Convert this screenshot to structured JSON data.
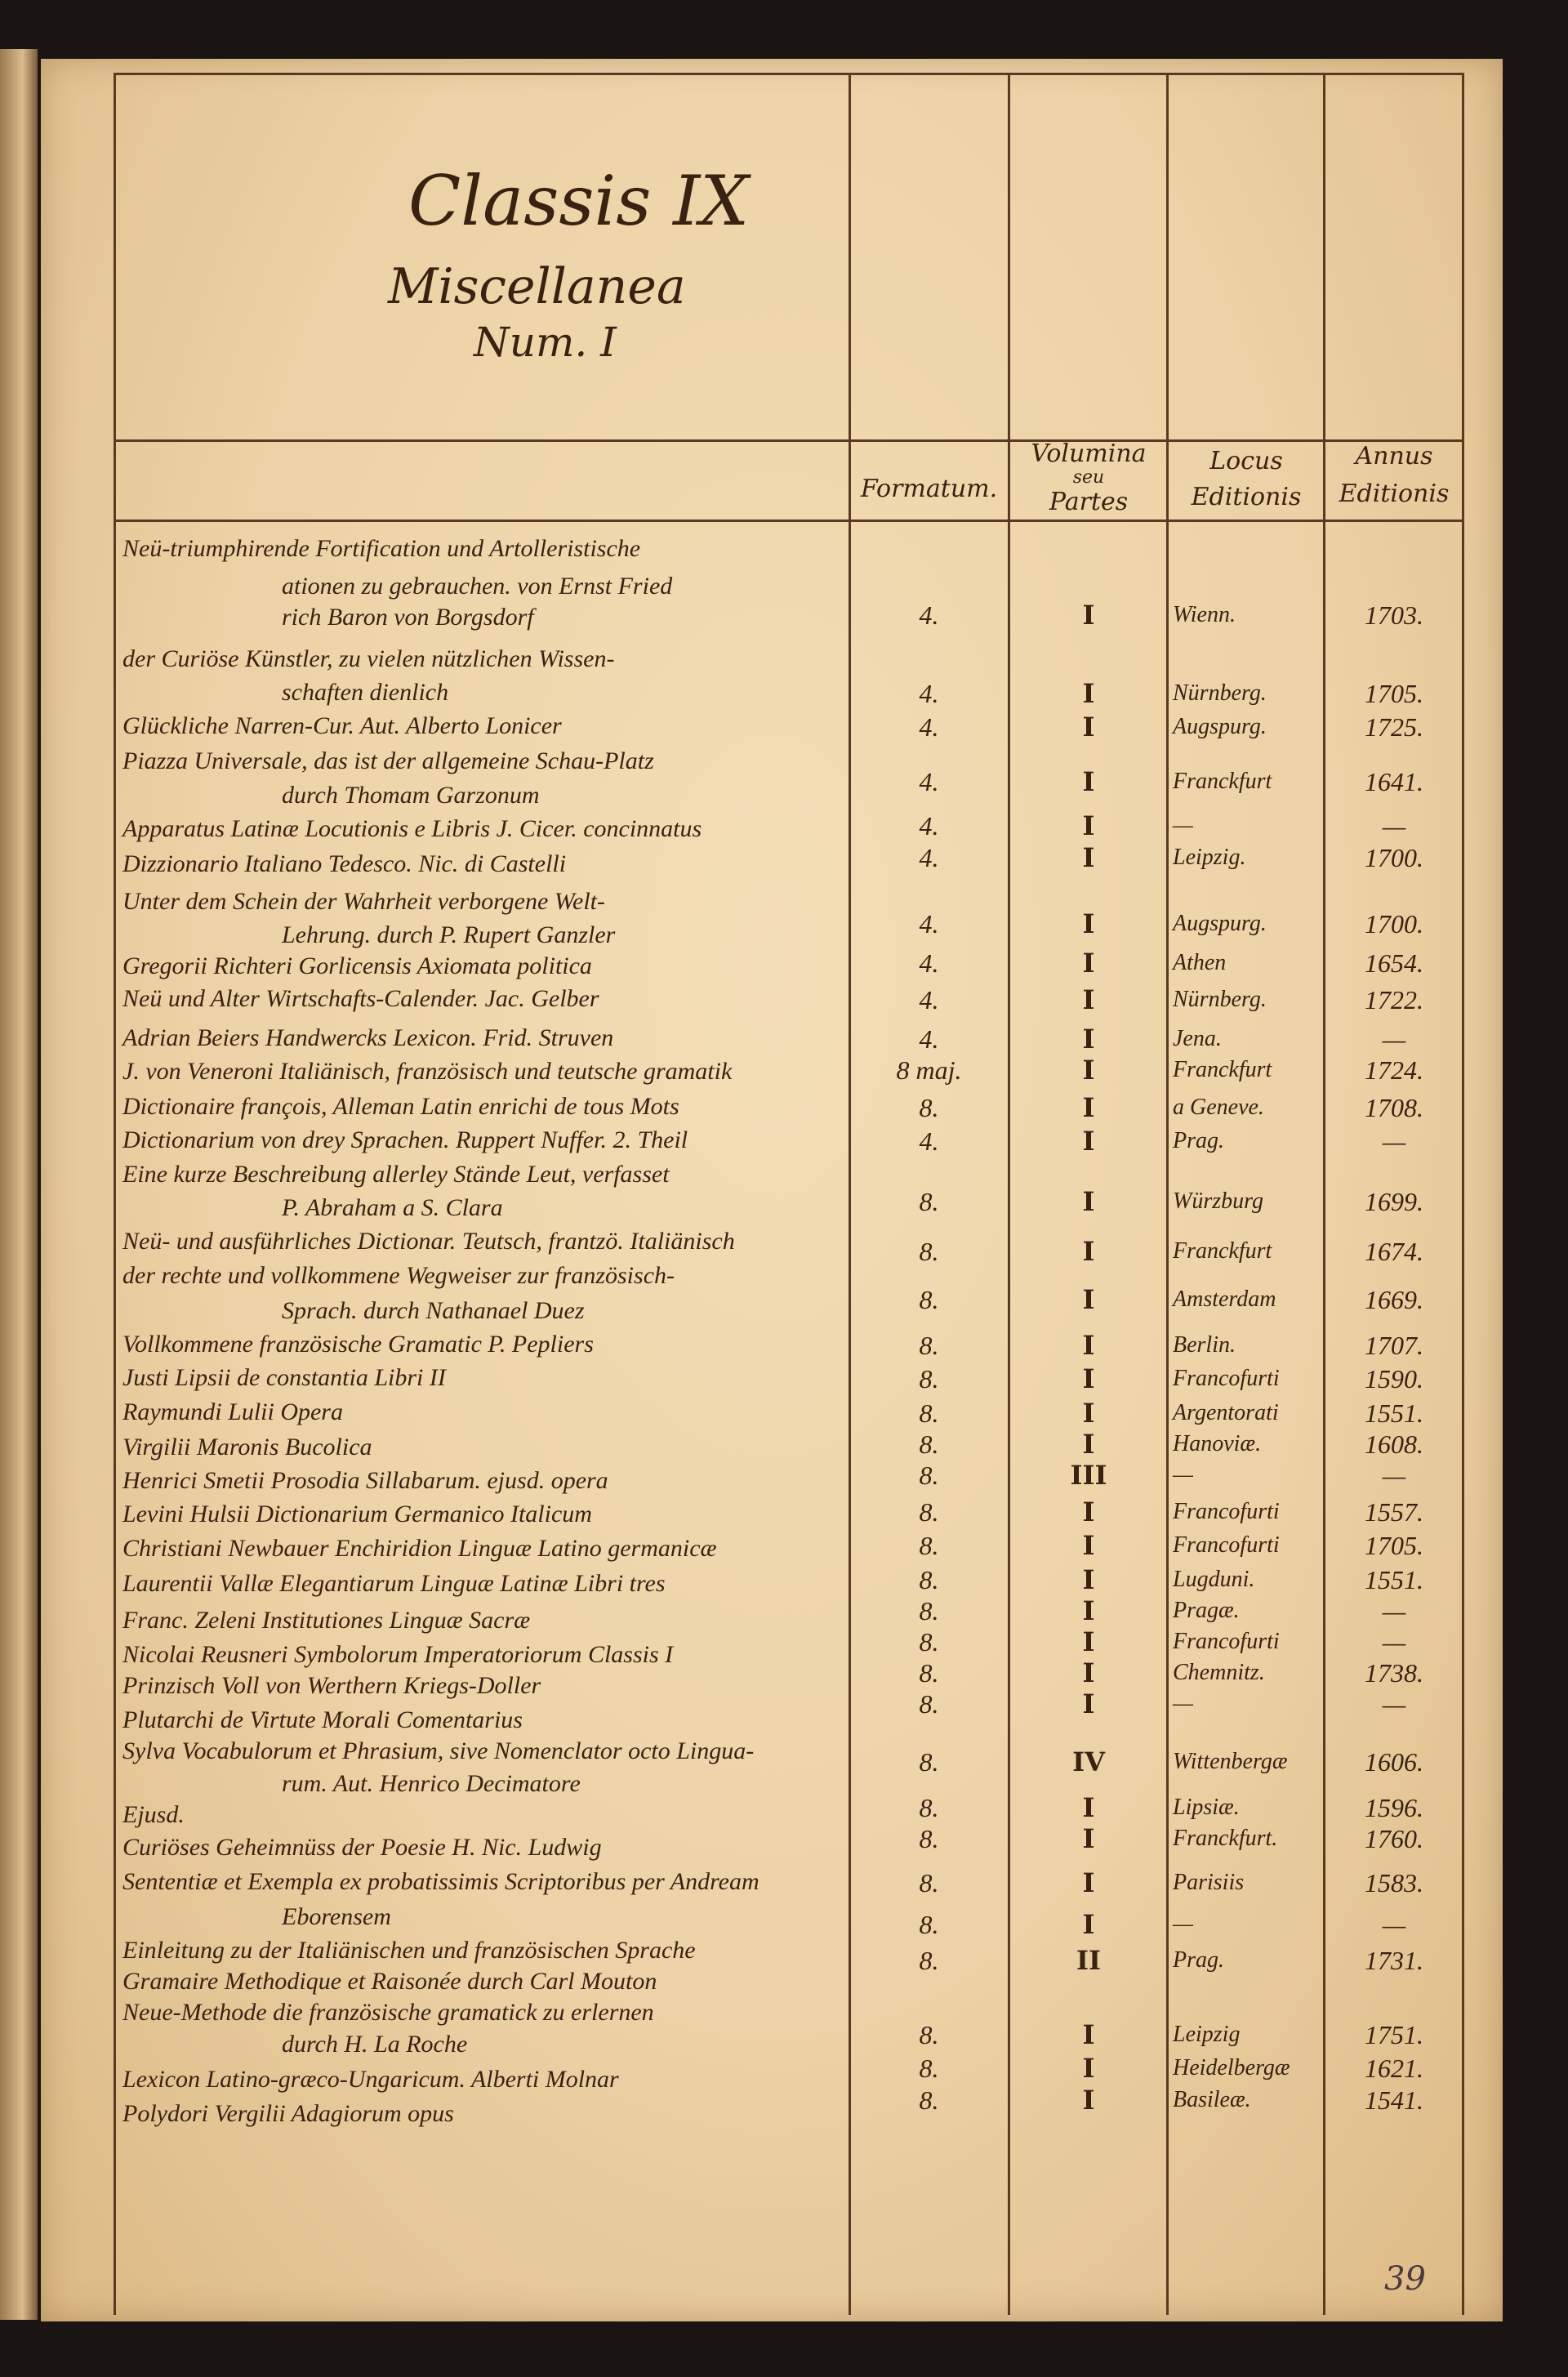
{
  "heading": {
    "classis": "Classis IX",
    "subject": "Miscellanea",
    "number": "Num. I"
  },
  "columns": {
    "formatum": "Formatum.",
    "volumina": [
      "Volumina",
      "seu",
      "Partes"
    ],
    "locus": [
      "Locus",
      "Editionis"
    ],
    "annus": [
      "Annus",
      "Editionis"
    ]
  },
  "entries": [
    {
      "lines": [
        "Neü-triumphirende Fortification und Artolleristische",
        "ationen zu gebrauchen. von Ernst Fried",
        "rich Baron von Borgsdorf"
      ],
      "formatum": "4.",
      "volumina": "I",
      "locus": "Wienn.",
      "annus": "1703."
    },
    {
      "lines": [
        "der Curiöse Künstler, zu vielen nützlichen Wissen-",
        "schaften dienlich"
      ],
      "formatum": "4.",
      "volumina": "I",
      "locus": "Nürnberg.",
      "annus": "1705."
    },
    {
      "lines": [
        "Glückliche Narren-Cur. Aut. Alberto Lonicer"
      ],
      "formatum": "4.",
      "volumina": "I",
      "locus": "Augspurg.",
      "annus": "1725."
    },
    {
      "lines": [
        "Piazza Universale, das ist der allgemeine Schau-Platz",
        "durch Thomam Garzonum"
      ],
      "formatum": "4.",
      "volumina": "I",
      "locus": "Franckfurt",
      "annus": "1641."
    },
    {
      "lines": [
        "Apparatus Latinæ Locutionis e Libris J. Cicer. concinnatus"
      ],
      "formatum": "4.",
      "volumina": "I",
      "locus": "—",
      "annus": "—"
    },
    {
      "lines": [
        "Dizzionario Italiano Tedesco. Nic. di Castelli"
      ],
      "formatum": "4.",
      "volumina": "I",
      "locus": "Leipzig.",
      "annus": "1700."
    },
    {
      "lines": [
        "Unter dem Schein der Wahrheit verborgene Welt-",
        "Lehrung. durch P. Rupert Ganzler"
      ],
      "formatum": "4.",
      "volumina": "I",
      "locus": "Augspurg.",
      "annus": "1700."
    },
    {
      "lines": [
        "Gregorii Richteri Gorlicensis Axiomata politica"
      ],
      "formatum": "4.",
      "volumina": "I",
      "locus": "Athen",
      "annus": "1654."
    },
    {
      "lines": [
        "Neü und Alter Wirtschafts-Calender. Jac. Gelber"
      ],
      "formatum": "4.",
      "volumina": "I",
      "locus": "Nürnberg.",
      "annus": "1722."
    },
    {
      "lines": [
        "Adrian Beiers Handwercks Lexicon. Frid. Struven"
      ],
      "formatum": "4.",
      "volumina": "I",
      "locus": "Jena.",
      "annus": "—"
    },
    {
      "lines": [
        "J. von Veneroni Italiänisch, französisch und teutsche gramatik"
      ],
      "formatum": "8 maj.",
      "volumina": "I",
      "locus": "Franckfurt",
      "annus": "1724."
    },
    {
      "lines": [
        "Dictionaire françois, Alleman Latin enrichi de tous Mots"
      ],
      "formatum": "8.",
      "volumina": "I",
      "locus": "a Geneve.",
      "annus": "1708."
    },
    {
      "lines": [
        "Dictionarium von drey Sprachen. Ruppert Nuffer. 2. Theil"
      ],
      "formatum": "4.",
      "volumina": "I",
      "locus": "Prag.",
      "annus": "—"
    },
    {
      "lines": [
        "Eine kurze Beschreibung allerley Stände Leut, verfasset",
        "P. Abraham a S. Clara"
      ],
      "formatum": "8.",
      "volumina": "I",
      "locus": "Würzburg",
      "annus": "1699."
    },
    {
      "lines": [
        "Neü- und ausführliches Dictionar. Teutsch, frantzö. Italiänisch"
      ],
      "formatum": "8.",
      "volumina": "I",
      "locus": "Franckfurt",
      "annus": "1674."
    },
    {
      "lines": [
        "der rechte und vollkommene Wegweiser zur französisch-",
        "Sprach. durch Nathanael Duez"
      ],
      "formatum": "8.",
      "volumina": "I",
      "locus": "Amsterdam",
      "annus": "1669."
    },
    {
      "lines": [
        "Vollkommene französische Gramatic P. Pepliers"
      ],
      "formatum": "8.",
      "volumina": "I",
      "locus": "Berlin.",
      "annus": "1707."
    },
    {
      "lines": [
        "Justi Lipsii de constantia Libri II"
      ],
      "formatum": "8.",
      "volumina": "I",
      "locus": "Francofurti",
      "annus": "1590."
    },
    {
      "lines": [
        "Raymundi Lulii Opera"
      ],
      "formatum": "8.",
      "volumina": "I",
      "locus": "Argentorati",
      "annus": "1551."
    },
    {
      "lines": [
        "Virgilii Maronis Bucolica"
      ],
      "formatum": "8.",
      "volumina": "I",
      "locus": "Hanoviæ.",
      "annus": "1608."
    },
    {
      "lines": [
        "Henrici Smetii Prosodia Sillabarum. ejusd. opera"
      ],
      "formatum": "8.",
      "volumina": "III",
      "locus": "—",
      "annus": "—"
    },
    {
      "lines": [
        "Levini Hulsii Dictionarium Germanico Italicum"
      ],
      "formatum": "8.",
      "volumina": "I",
      "locus": "Francofurti",
      "annus": "1557."
    },
    {
      "lines": [
        "Christiani Newbauer Enchiridion Linguæ Latino germanicæ"
      ],
      "formatum": "8.",
      "volumina": "I",
      "locus": "Francofurti",
      "annus": "1705."
    },
    {
      "lines": [
        "Laurentii Vallæ Elegantiarum Linguæ Latinæ Libri tres"
      ],
      "formatum": "8.",
      "volumina": "I",
      "locus": "Lugduni.",
      "annus": "1551."
    },
    {
      "lines": [
        "Franc. Zeleni Institutiones Linguæ Sacræ"
      ],
      "formatum": "8.",
      "volumina": "I",
      "locus": "Pragæ.",
      "annus": "—"
    },
    {
      "lines": [
        "Nicolai Reusneri Symbolorum Imperatoriorum Classis I"
      ],
      "formatum": "8.",
      "volumina": "I",
      "locus": "Francofurti",
      "annus": "—"
    },
    {
      "lines": [
        "Prinzisch Voll von Werthern Kriegs-Doller"
      ],
      "formatum": "8.",
      "volumina": "I",
      "locus": "Chemnitz.",
      "annus": "1738."
    },
    {
      "lines": [
        "Plutarchi de Virtute Morali Comentarius"
      ],
      "formatum": "8.",
      "volumina": "I",
      "locus": "—",
      "annus": "—"
    },
    {
      "lines": [
        "Sylva Vocabulorum et Phrasium, sive Nomenclator octo Lingua-",
        "rum. Aut. Henrico Decimatore"
      ],
      "formatum": "8.",
      "volumina": "IV",
      "locus": "Wittenbergæ",
      "annus": "1606."
    },
    {
      "lines": [
        "Ejusd."
      ],
      "formatum": "8.",
      "volumina": "I",
      "locus": "Lipsiæ.",
      "annus": "1596."
    },
    {
      "lines": [
        "Curiöses Geheimnüss der Poesie H. Nic. Ludwig"
      ],
      "formatum": "8.",
      "volumina": "I",
      "locus": "Franckfurt.",
      "annus": "1760."
    },
    {
      "lines": [
        "Sententiæ et Exempla ex probatissimis Scriptoribus per Andream",
        "Eborensem"
      ],
      "formatum": "8.",
      "volumina": "I",
      "locus": "Parisiis",
      "annus": "1583."
    },
    {
      "lines": [
        "Einleitung zu der Italiänischen und französischen Sprache"
      ],
      "formatum": "8.",
      "volumina": "I",
      "locus": "—",
      "annus": "—"
    },
    {
      "lines": [
        "Gramaire Methodique et Raisonée durch Carl Mouton"
      ],
      "formatum": "8.",
      "volumina": "II",
      "locus": "Prag.",
      "annus": "1731."
    },
    {
      "lines": [
        "Neue-Methode die französische gramatick zu erlernen",
        "durch H. La Roche"
      ],
      "formatum": "8.",
      "volumina": "I",
      "locus": "Leipzig",
      "annus": "1751."
    },
    {
      "lines": [
        "Lexicon Latino-græco-Ungaricum. Alberti Molnar"
      ],
      "formatum": "8.",
      "volumina": "I",
      "locus": "Heidelbergæ",
      "annus": "1621."
    },
    {
      "lines": [
        "Polydori Vergilii Adagiorum opus"
      ],
      "formatum": "8.",
      "volumina": "I",
      "locus": "Basileæ.",
      "annus": "1541."
    }
  ],
  "page_number": "39",
  "ink_color": "#3a2212",
  "paper_color": "#ecd2a6"
}
